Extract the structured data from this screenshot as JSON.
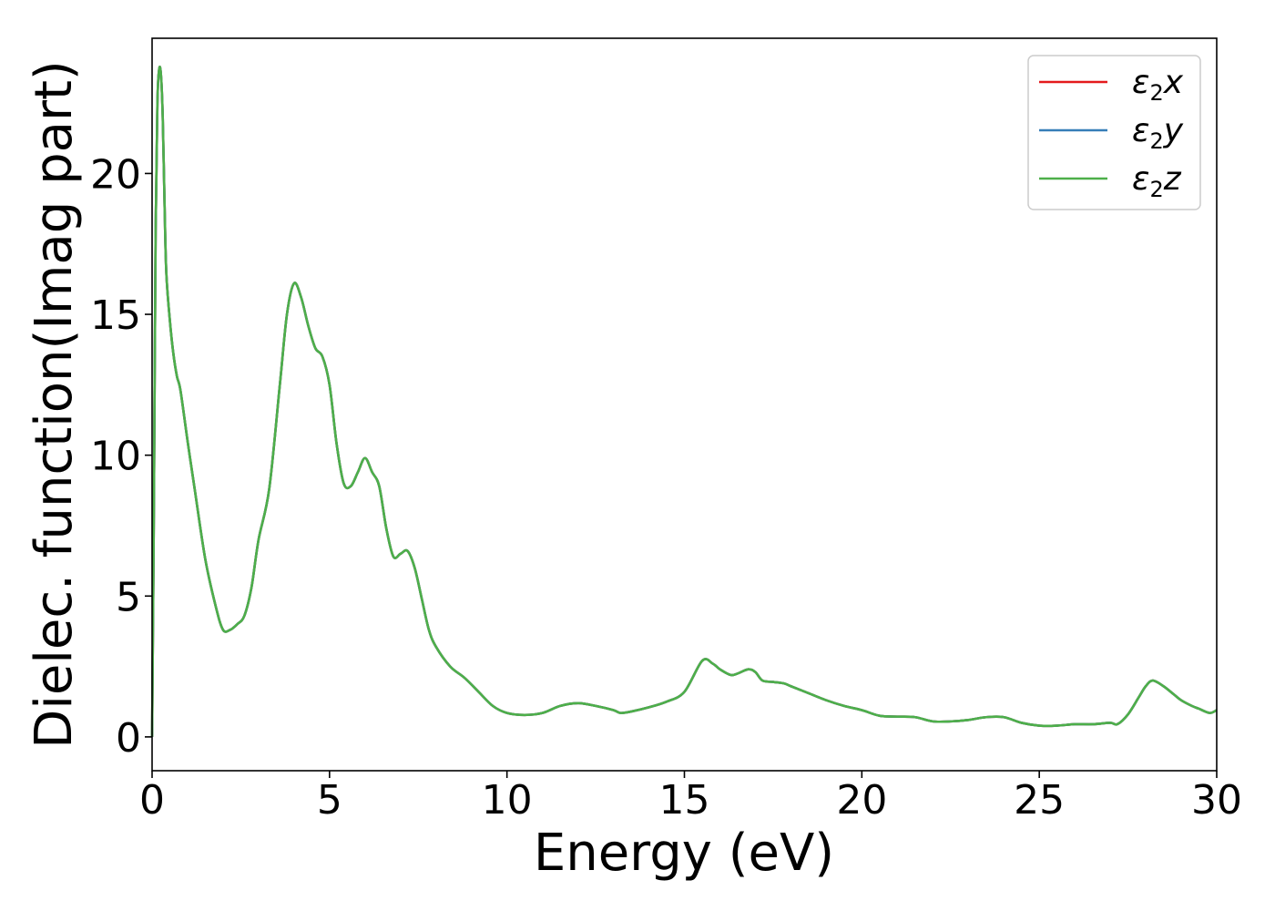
{
  "chart_data": {
    "type": "line",
    "xlabel": "Energy (eV)",
    "ylabel": "Dielec. function(Imag part)",
    "xlim": [
      0,
      30
    ],
    "ylim": [
      -1.2,
      24.8
    ],
    "xticks": [
      0,
      5,
      10,
      15,
      20,
      25,
      30
    ],
    "yticks": [
      0,
      5,
      10,
      15,
      20
    ],
    "grid": false,
    "legend_position": "top-right",
    "series": [
      {
        "name": "ε2x",
        "name_base": "ε",
        "name_sub": "2",
        "name_suffix": "x",
        "color": "#e41a1c"
      },
      {
        "name": "ε2y",
        "name_base": "ε",
        "name_sub": "2",
        "name_suffix": "y",
        "color": "#377eb8"
      },
      {
        "name": "ε2z",
        "name_base": "ε",
        "name_sub": "2",
        "name_suffix": "z",
        "color": "#4daf4a"
      }
    ],
    "x": [
      0.0,
      0.05,
      0.1,
      0.15,
      0.2,
      0.25,
      0.3,
      0.35,
      0.4,
      0.5,
      0.6,
      0.7,
      0.8,
      1.0,
      1.2,
      1.5,
      1.8,
      2.0,
      2.2,
      2.4,
      2.6,
      2.8,
      3.0,
      3.3,
      3.6,
      3.8,
      4.0,
      4.2,
      4.4,
      4.6,
      4.8,
      5.0,
      5.2,
      5.4,
      5.6,
      5.8,
      6.0,
      6.2,
      6.4,
      6.6,
      6.8,
      7.0,
      7.2,
      7.4,
      7.6,
      7.8,
      8.0,
      8.4,
      8.8,
      9.2,
      9.6,
      10.0,
      10.5,
      11.0,
      11.5,
      12.0,
      12.5,
      13.0,
      13.2,
      13.5,
      14.0,
      14.5,
      15.0,
      15.5,
      15.8,
      16.0,
      16.3,
      16.5,
      16.8,
      17.0,
      17.2,
      17.5,
      17.8,
      18.0,
      18.5,
      19.0,
      19.5,
      20.0,
      20.5,
      21.0,
      21.5,
      22.0,
      22.5,
      23.0,
      23.5,
      24.0,
      24.5,
      25.0,
      25.5,
      26.0,
      26.5,
      27.0,
      27.2,
      27.5,
      27.8,
      28.0,
      28.2,
      28.5,
      28.8,
      29.0,
      29.3,
      29.5,
      29.8,
      30.0
    ],
    "y": [
      0.0,
      8.0,
      18.0,
      22.5,
      23.7,
      23.5,
      22.0,
      19.0,
      16.5,
      14.8,
      13.6,
      12.8,
      12.3,
      10.5,
      8.8,
      6.3,
      4.6,
      3.8,
      3.8,
      4.0,
      4.3,
      5.3,
      7.0,
      8.8,
      12.5,
      15.0,
      16.1,
      15.6,
      14.6,
      13.8,
      13.5,
      12.5,
      10.4,
      9.0,
      8.9,
      9.4,
      9.9,
      9.4,
      8.9,
      7.4,
      6.4,
      6.5,
      6.6,
      6.0,
      4.9,
      3.8,
      3.2,
      2.5,
      2.1,
      1.6,
      1.1,
      0.85,
      0.78,
      0.85,
      1.1,
      1.2,
      1.1,
      0.95,
      0.85,
      0.9,
      1.05,
      1.25,
      1.6,
      2.7,
      2.6,
      2.4,
      2.2,
      2.25,
      2.4,
      2.3,
      2.0,
      1.95,
      1.9,
      1.8,
      1.55,
      1.3,
      1.1,
      0.95,
      0.75,
      0.72,
      0.7,
      0.55,
      0.55,
      0.6,
      0.7,
      0.7,
      0.5,
      0.4,
      0.4,
      0.45,
      0.45,
      0.5,
      0.45,
      0.8,
      1.4,
      1.8,
      2.0,
      1.8,
      1.5,
      1.3,
      1.1,
      1.0,
      0.85,
      0.95
    ]
  }
}
